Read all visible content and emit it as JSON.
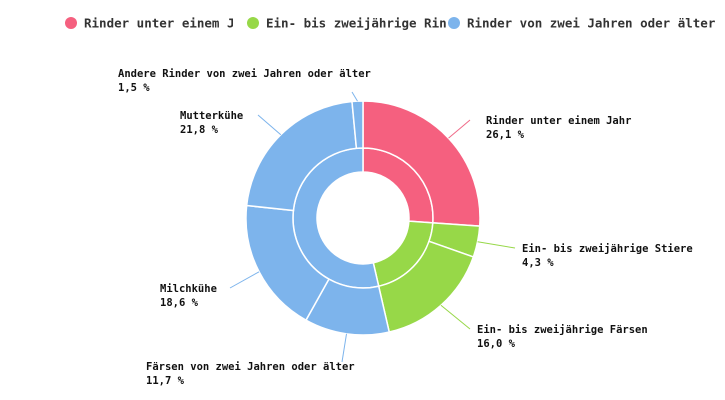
{
  "chart_data": {
    "type": "pie",
    "variant": "nested-donut",
    "title": "",
    "legend": {
      "placement": "top",
      "items": [
        {
          "name": "Rinder unter einem Jahr",
          "color": "#f5607f"
        },
        {
          "name": "Ein- bis zweijährige Rinder",
          "color": "#97d848"
        },
        {
          "name": "Rinder von zwei Jahren oder älter",
          "color": "#7db4ec"
        }
      ]
    },
    "inner_ring": [
      {
        "name": "Rinder unter einem Jahr",
        "value": 26.1,
        "color": "#f5607f"
      },
      {
        "name": "Ein- bis zweijährige Rinder",
        "value": 20.3,
        "color": "#97d848"
      },
      {
        "name": "Rinder von zwei Jahren oder älter",
        "value": 53.6,
        "color": "#7db4ec"
      }
    ],
    "outer_ring": [
      {
        "name": "Rinder unter einem Jahr",
        "value": 26.1,
        "value_label": "26,1 %",
        "color": "#f5607f"
      },
      {
        "name": "Ein- bis zweijährige Stiere",
        "value": 4.3,
        "value_label": "4,3 %",
        "color": "#97d848"
      },
      {
        "name": "Ein- bis zweijährige Färsen",
        "value": 16.0,
        "value_label": "16,0 %",
        "color": "#97d848"
      },
      {
        "name": "Färsen von zwei Jahren oder älter",
        "value": 11.7,
        "value_label": "11,7 %",
        "color": "#7db4ec"
      },
      {
        "name": "Milchkühe",
        "value": 18.6,
        "value_label": "18,6 %",
        "color": "#7db4ec"
      },
      {
        "name": "Mutterkühe",
        "value": 21.8,
        "value_label": "21,8 %",
        "color": "#7db4ec"
      },
      {
        "name": "Andere Rinder von zwei Jahren oder älter",
        "value": 1.5,
        "value_label": "1,5 %",
        "color": "#7db4ec"
      }
    ]
  }
}
